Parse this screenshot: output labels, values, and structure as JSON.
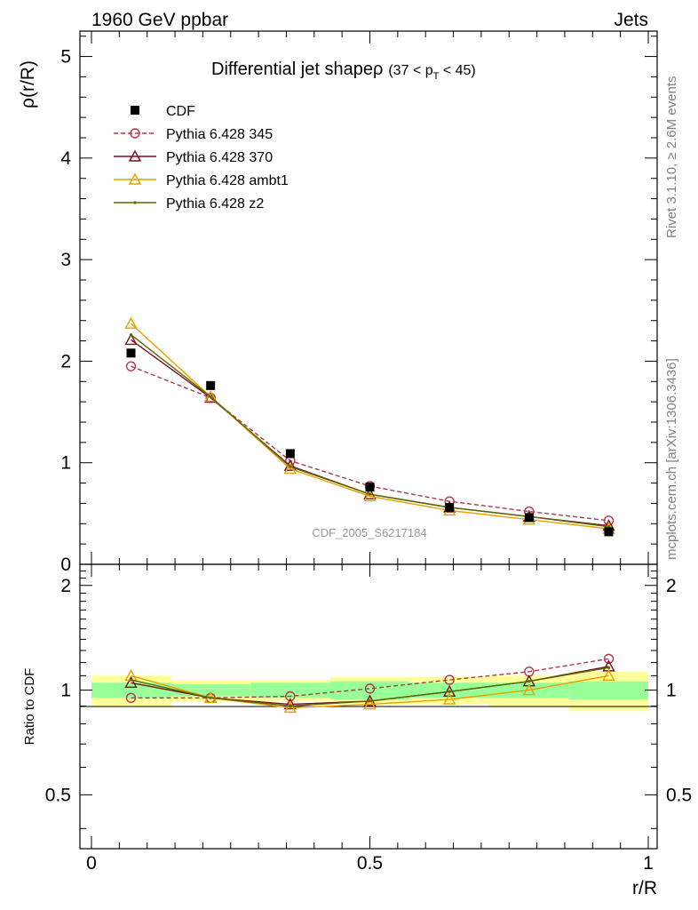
{
  "header": {
    "left": "1960 GeV ppbar",
    "right": "Jets"
  },
  "side_labels": {
    "rivet": "Rivet 3.1.10, ≥ 2.6M events",
    "mcplots": "mcplots.cern.ch [arXiv:1306.3436]"
  },
  "chart_data": {
    "type": "line",
    "title_main": "Differential jet shapeρ",
    "title_cut_open": "(37 < p",
    "title_cut_sub": "T",
    "title_cut_close": " < 45)",
    "analysis_id": "CDF_2005_S6217184",
    "xlabel": "r/R",
    "ylabel": "ρ(r/R)",
    "ratio_ylabel": "Ratio to CDF",
    "xlim": [
      0,
      1
    ],
    "ylim": [
      0,
      5.25
    ],
    "ratio_ylim": [
      0.35,
      2.3
    ],
    "x_ticks": [
      {
        "v": 0,
        "label": "0"
      },
      {
        "v": 0.5,
        "label": "0.5"
      },
      {
        "v": 1,
        "label": "1"
      }
    ],
    "y_ticks": [
      {
        "v": 0,
        "label": "0"
      },
      {
        "v": 1,
        "label": "1"
      },
      {
        "v": 2,
        "label": "2"
      },
      {
        "v": 3,
        "label": "3"
      },
      {
        "v": 4,
        "label": "4"
      },
      {
        "v": 5,
        "label": "5"
      }
    ],
    "ratio_ticks": [
      {
        "v": 0.5,
        "label": "0.5"
      },
      {
        "v": 1,
        "label": "1"
      },
      {
        "v": 2,
        "label": "2"
      }
    ],
    "x": [
      0.071,
      0.214,
      0.357,
      0.5,
      0.643,
      0.786,
      0.929
    ],
    "bin_edges": [
      0,
      0.143,
      0.286,
      0.429,
      0.571,
      0.714,
      0.857,
      1.0
    ],
    "cdf": {
      "name": "CDF",
      "values": [
        2.08,
        1.76,
        1.09,
        0.76,
        0.56,
        0.46,
        0.32
      ],
      "color": "#000000"
    },
    "band_inner": [
      0.05,
      0.04,
      0.05,
      0.06,
      0.05,
      0.05,
      0.06
    ],
    "band_outer": [
      0.1,
      0.07,
      0.07,
      0.09,
      0.09,
      0.1,
      0.13
    ],
    "series": [
      {
        "name": "Pythia 6.428 345",
        "values": [
          1.95,
          1.64,
          1.02,
          0.77,
          0.62,
          0.52,
          0.43
        ],
        "ratio": [
          0.95,
          0.95,
          0.96,
          1.01,
          1.07,
          1.13,
          1.23
        ],
        "color": "#b03a4a",
        "marker": "circle",
        "dash": "5,3"
      },
      {
        "name": "Pythia 6.428 370",
        "values": [
          2.21,
          1.64,
          0.97,
          0.69,
          0.56,
          0.47,
          0.38
        ],
        "ratio": [
          1.05,
          0.95,
          0.91,
          0.93,
          0.99,
          1.06,
          1.17
        ],
        "color": "#7a1020",
        "marker": "triangle",
        "dash": ""
      },
      {
        "name": "Pythia 6.428 ambt1",
        "values": [
          2.37,
          1.65,
          0.94,
          0.67,
          0.53,
          0.44,
          0.35
        ],
        "ratio": [
          1.1,
          0.95,
          0.89,
          0.91,
          0.94,
          1.0,
          1.1
        ],
        "color": "#e8a000",
        "marker": "triangle",
        "dash": ""
      },
      {
        "name": "Pythia 6.428 z2",
        "values": [
          2.26,
          1.65,
          0.96,
          0.69,
          0.56,
          0.47,
          0.37
        ],
        "ratio": [
          1.07,
          0.95,
          0.9,
          0.93,
          0.99,
          1.06,
          1.16
        ],
        "color": "#556b00",
        "marker": "dot",
        "dash": ""
      }
    ]
  }
}
